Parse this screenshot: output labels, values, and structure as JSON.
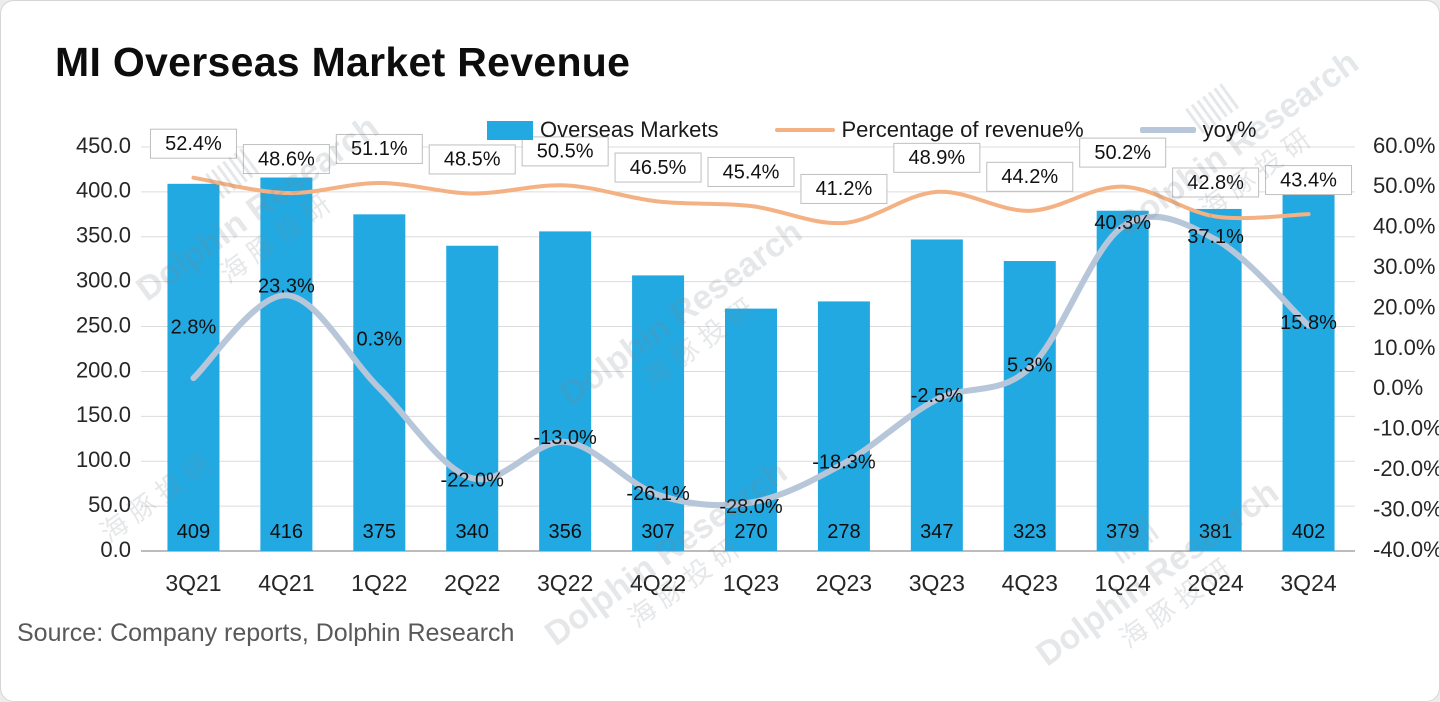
{
  "page": {
    "source": "Source: Company reports, Dolphin Research"
  },
  "watermark": {
    "en": "Dolphin Research",
    "cn": "海豚投研"
  },
  "chart_data": {
    "type": "bar",
    "subtype": "combo bar+line, dual axis",
    "title": "MI Overseas Market Revenue",
    "categories": [
      "3Q21",
      "4Q21",
      "1Q22",
      "2Q22",
      "3Q22",
      "4Q22",
      "1Q23",
      "2Q23",
      "3Q23",
      "4Q23",
      "1Q24",
      "2Q24",
      "3Q24"
    ],
    "series": [
      {
        "name": "Overseas Markets",
        "type": "bar",
        "axis": "left",
        "color": "#22a9e1",
        "values": [
          409,
          416,
          375,
          340,
          356,
          307,
          270,
          278,
          347,
          323,
          379,
          381,
          402
        ]
      },
      {
        "name": "Percentage of revenue%",
        "type": "line",
        "axis": "right",
        "color": "#f4b183",
        "values": [
          52.4,
          48.6,
          51.1,
          48.5,
          50.5,
          46.5,
          45.4,
          41.2,
          48.9,
          44.2,
          50.2,
          42.8,
          43.4
        ]
      },
      {
        "name": "yoy%",
        "type": "line",
        "axis": "right",
        "color": "#b7c6d9",
        "values": [
          2.8,
          23.3,
          0.3,
          -22.0,
          -13.0,
          -26.1,
          -28.0,
          -18.3,
          -2.5,
          5.3,
          40.3,
          37.1,
          15.8
        ]
      }
    ],
    "left_axis": {
      "min": 0,
      "max": 450,
      "step": 50,
      "labels": [
        "450.0",
        "400.0",
        "350.0",
        "300.0",
        "250.0",
        "200.0",
        "150.0",
        "100.0",
        "50.0",
        "0.0"
      ]
    },
    "right_axis": {
      "min": -40,
      "max": 60,
      "step": 10,
      "labels": [
        "60.0%",
        "50.0%",
        "40.0%",
        "30.0%",
        "20.0%",
        "10.0%",
        "0.0%",
        "-10.0%",
        "-20.0%",
        "-30.0%",
        "-40.0%"
      ]
    },
    "grid": true,
    "legend_position": "top",
    "yoy_label_dy": [
      -50,
      -8,
      -48,
      3,
      -3,
      0,
      5,
      0,
      -3,
      -2,
      -3,
      -2,
      -2
    ]
  }
}
